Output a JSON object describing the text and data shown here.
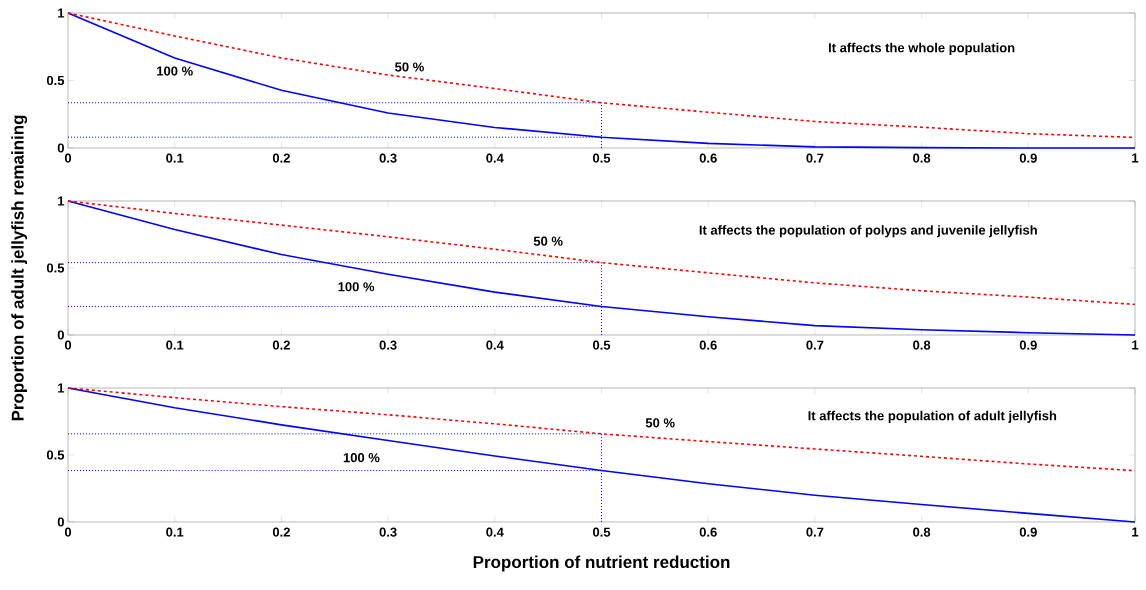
{
  "chart_data": [
    {
      "type": "line",
      "title": "It affects the whole population",
      "x": [
        0,
        0.1,
        0.2,
        0.3,
        0.4,
        0.5,
        0.6,
        0.7,
        0.8,
        0.9,
        1
      ],
      "xlim": [
        0,
        1
      ],
      "ylim": [
        0,
        1
      ],
      "xticks": [
        0,
        0.1,
        0.2,
        0.3,
        0.4,
        0.5,
        0.6,
        0.7,
        0.8,
        0.9,
        1
      ],
      "yticks": [
        0,
        0.5,
        1
      ],
      "marker": "none",
      "series": [
        {
          "name": "100 %",
          "color": "#0000ff",
          "line_style": "solid",
          "values": [
            1,
            0.667,
            0.427,
            0.259,
            0.152,
            0.08,
            0.034,
            0.008,
            0.003,
            0,
            0
          ]
        },
        {
          "name": "50 %",
          "color": "#ff0000",
          "line_style": "dashed",
          "values": [
            1,
            0.83,
            0.667,
            0.54,
            0.44,
            0.335,
            0.265,
            0.196,
            0.154,
            0.106,
            0.078
          ]
        }
      ],
      "ref_lines": [
        {
          "axis": "y",
          "value": 0.08,
          "color": "#0000ff",
          "line_style": "dotted"
        },
        {
          "axis": "y",
          "value": 0.335,
          "color": "#0000ff",
          "line_style": "dotted"
        },
        {
          "axis": "x",
          "value": 0.5,
          "color": "#0000ff",
          "line_style": "dotted"
        }
      ]
    },
    {
      "type": "line",
      "title": "It affects the population of polyps and juvenile jellyfish",
      "ylabel": "Proportion of adult jellyfish remaining",
      "x": [
        0,
        0.1,
        0.2,
        0.3,
        0.4,
        0.5,
        0.6,
        0.7,
        0.8,
        0.9,
        1
      ],
      "xlim": [
        0,
        1
      ],
      "ylim": [
        0,
        1
      ],
      "xticks": [
        0,
        0.1,
        0.2,
        0.3,
        0.4,
        0.5,
        0.6,
        0.7,
        0.8,
        0.9,
        1
      ],
      "yticks": [
        0,
        0.5,
        1
      ],
      "marker": "none",
      "series": [
        {
          "name": "100 %",
          "color": "#0000ff",
          "line_style": "solid",
          "values": [
            1,
            0.787,
            0.6,
            0.453,
            0.32,
            0.213,
            0.136,
            0.07,
            0.039,
            0.017,
            0
          ]
        },
        {
          "name": "50 %",
          "color": "#ff0000",
          "line_style": "dashed",
          "values": [
            1,
            0.907,
            0.82,
            0.733,
            0.64,
            0.54,
            0.464,
            0.389,
            0.33,
            0.283,
            0.228
          ]
        }
      ],
      "ref_lines": [
        {
          "axis": "y",
          "value": 0.213,
          "color": "#0000ff",
          "line_style": "dotted"
        },
        {
          "axis": "y",
          "value": 0.54,
          "color": "#0000ff",
          "line_style": "dotted"
        },
        {
          "axis": "x",
          "value": 0.5,
          "color": "#0000ff",
          "line_style": "dotted"
        }
      ]
    },
    {
      "type": "line",
      "title": "It affects the population of adult jellyfish",
      "xlabel": "Proportion of nutrient reduction",
      "x": [
        0,
        0.1,
        0.2,
        0.3,
        0.4,
        0.5,
        0.6,
        0.7,
        0.8,
        0.9,
        1
      ],
      "xlim": [
        0,
        1
      ],
      "ylim": [
        0,
        1
      ],
      "xticks": [
        0,
        0.1,
        0.2,
        0.3,
        0.4,
        0.5,
        0.6,
        0.7,
        0.8,
        0.9,
        1
      ],
      "yticks": [
        0,
        0.5,
        1
      ],
      "marker": "none",
      "series": [
        {
          "name": "100 %",
          "color": "#0000ff",
          "line_style": "solid",
          "values": [
            1,
            0.853,
            0.725,
            0.608,
            0.493,
            0.384,
            0.285,
            0.2,
            0.131,
            0.064,
            0
          ]
        },
        {
          "name": "50 %",
          "color": "#ff0000",
          "line_style": "dashed",
          "values": [
            1,
            0.928,
            0.861,
            0.8,
            0.733,
            0.658,
            0.6,
            0.545,
            0.49,
            0.433,
            0.383
          ]
        }
      ],
      "ref_lines": [
        {
          "axis": "y",
          "value": 0.384,
          "color": "#0000ff",
          "line_style": "dotted"
        },
        {
          "axis": "y",
          "value": 0.658,
          "color": "#0000ff",
          "line_style": "dotted"
        },
        {
          "axis": "x",
          "value": 0.5,
          "color": "#0000ff",
          "line_style": "dotted"
        }
      ]
    }
  ]
}
